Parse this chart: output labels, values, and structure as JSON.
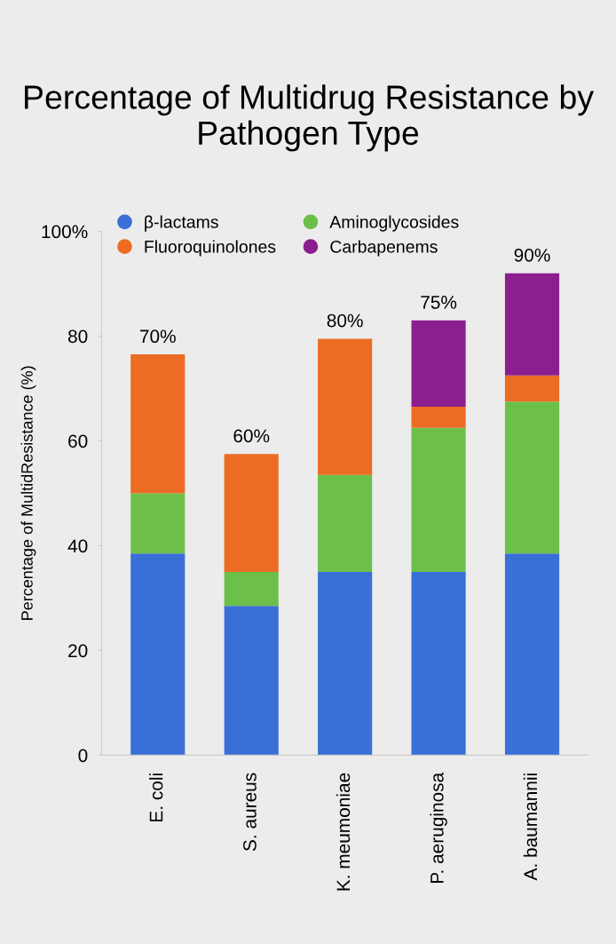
{
  "chart_data": {
    "type": "bar",
    "title": "Percentage of Multidrug Resistance by Pathogen Type",
    "ylabel": "Percentage of MultidResistance (%)",
    "categories": [
      "E. coli",
      "S. aureus",
      "K. meumoniae",
      "P. aeruginosa",
      "A. baumannii"
    ],
    "stacked": true,
    "series": [
      {
        "name": "β-lactams",
        "color": "#3a6fd8",
        "values": [
          38.5,
          28.5,
          35,
          35,
          38.5
        ]
      },
      {
        "name": "Aminoglycosides",
        "color": "#6cc04a",
        "values": [
          11.5,
          6.5,
          18.5,
          27.5,
          29
        ]
      },
      {
        "name": "Fluoroquinolones",
        "color": "#ec6c24",
        "values": [
          26.5,
          22.5,
          26,
          4,
          5
        ]
      },
      {
        "name": "Carbapenems",
        "color": "#8b1f8f",
        "values": [
          0,
          0,
          0,
          16.5,
          19.5
        ]
      }
    ],
    "annotations": [
      {
        "text": "70%",
        "x": "E. coli",
        "y": 76.5
      },
      {
        "text": "60%",
        "x": "S. aureus",
        "y": 57.5
      },
      {
        "text": "80%",
        "x": "K. meumoniae",
        "y": 79.5
      },
      {
        "text": "75%",
        "x": "P. aeruginosa",
        "y": 83
      },
      {
        "text": "90%",
        "x": "A. baumannii",
        "y": 92
      }
    ],
    "ylim": [
      0,
      100
    ],
    "yticks": [
      0,
      20,
      40,
      60,
      80,
      {
        "value": 100,
        "label": "100%"
      }
    ],
    "grid": false,
    "legend": "top left"
  }
}
